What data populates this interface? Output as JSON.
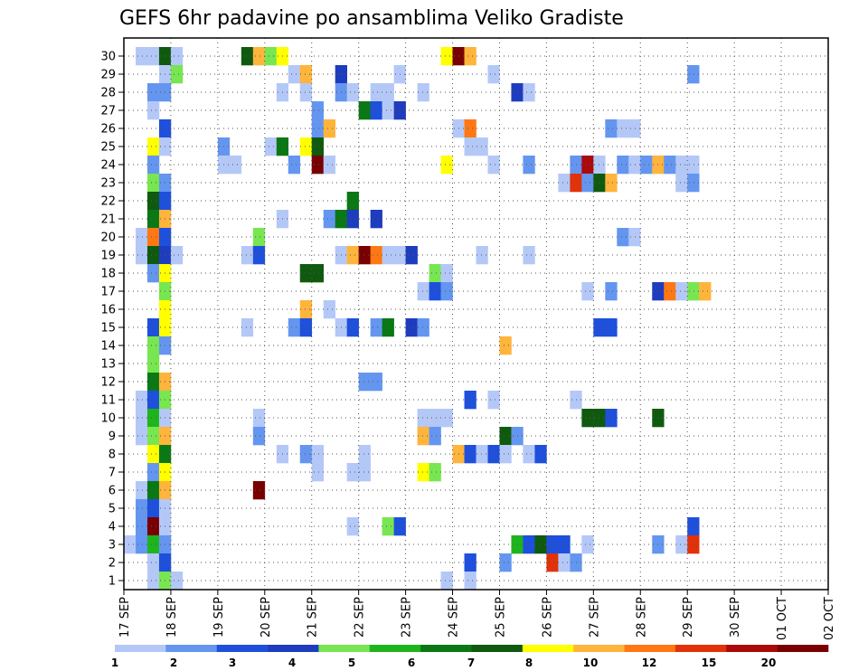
{
  "chart_data": {
    "type": "heatmap",
    "title": "GEFS 6hr padavine po ansamblima Veliko Gradiste",
    "ylim": [
      1,
      30
    ],
    "y_ticks": [
      "1",
      "2",
      "3",
      "4",
      "5",
      "6",
      "7",
      "8",
      "9",
      "10",
      "11",
      "12",
      "13",
      "14",
      "15",
      "16",
      "17",
      "18",
      "19",
      "20",
      "21",
      "22",
      "23",
      "24",
      "25",
      "26",
      "27",
      "28",
      "29",
      "30"
    ],
    "x_ticks": [
      "17 SEP",
      "18 SEP",
      "19 SEP",
      "20 SEP",
      "21 SEP",
      "22 SEP",
      "23 SEP",
      "24 SEP",
      "25 SEP",
      "26 SEP",
      "27 SEP",
      "28 SEP",
      "29 SEP",
      "30 SEP",
      "01 OCT",
      "02 OCT"
    ],
    "time_step": "6hr",
    "grid": true,
    "colorbar": {
      "position": "bottom",
      "levels": [
        "1",
        "2",
        "3",
        "4",
        "5",
        "6",
        "7",
        "8",
        "10",
        "12",
        "15",
        "20"
      ],
      "colors": [
        "#b4c8f8",
        "#6496f0",
        "#1e50dc",
        "#1e3cbe",
        "#78e650",
        "#1eb41e",
        "#0a7814",
        "#0f5a0f",
        "#ffff00",
        "#ffb43c",
        "#ff7814",
        "#e1320a",
        "#aa0a0a",
        "#780000"
      ]
    },
    "cells_note": "each cell: [column index (6-hour step starting 17 SEP 00), member, color class index]",
    "cells": [
      [
        1,
        30,
        0
      ],
      [
        2,
        30,
        0
      ],
      [
        3,
        30,
        7
      ],
      [
        4,
        30,
        0
      ],
      [
        10,
        30,
        7
      ],
      [
        11,
        30,
        9
      ],
      [
        12,
        30,
        4
      ],
      [
        13,
        30,
        8
      ],
      [
        27,
        30,
        8
      ],
      [
        28,
        30,
        13
      ],
      [
        29,
        30,
        9
      ],
      [
        3,
        29,
        0
      ],
      [
        4,
        29,
        4
      ],
      [
        14,
        29,
        0
      ],
      [
        15,
        29,
        9
      ],
      [
        18,
        29,
        3
      ],
      [
        23,
        29,
        0
      ],
      [
        31,
        29,
        0
      ],
      [
        48,
        29,
        1
      ],
      [
        2,
        28,
        1
      ],
      [
        3,
        28,
        1
      ],
      [
        13,
        28,
        0
      ],
      [
        15,
        28,
        0
      ],
      [
        18,
        28,
        1
      ],
      [
        19,
        28,
        0
      ],
      [
        21,
        28,
        0
      ],
      [
        22,
        28,
        0
      ],
      [
        25,
        28,
        0
      ],
      [
        33,
        28,
        3
      ],
      [
        34,
        28,
        0
      ],
      [
        2,
        27,
        0
      ],
      [
        16,
        27,
        1
      ],
      [
        20,
        27,
        6
      ],
      [
        21,
        27,
        2
      ],
      [
        22,
        27,
        0
      ],
      [
        23,
        27,
        3
      ],
      [
        3,
        26,
        2
      ],
      [
        16,
        26,
        1
      ],
      [
        17,
        26,
        9
      ],
      [
        28,
        26,
        0
      ],
      [
        29,
        26,
        10
      ],
      [
        41,
        26,
        1
      ],
      [
        42,
        26,
        0
      ],
      [
        43,
        26,
        0
      ],
      [
        2,
        25,
        8
      ],
      [
        3,
        25,
        0
      ],
      [
        8,
        25,
        1
      ],
      [
        12,
        25,
        0
      ],
      [
        13,
        25,
        6
      ],
      [
        15,
        25,
        8
      ],
      [
        16,
        25,
        7
      ],
      [
        29,
        25,
        0
      ],
      [
        30,
        25,
        0
      ],
      [
        2,
        24,
        1
      ],
      [
        8,
        24,
        0
      ],
      [
        9,
        24,
        0
      ],
      [
        14,
        24,
        1
      ],
      [
        16,
        24,
        13
      ],
      [
        17,
        24,
        0
      ],
      [
        27,
        24,
        8
      ],
      [
        31,
        24,
        0
      ],
      [
        34,
        24,
        1
      ],
      [
        38,
        24,
        1
      ],
      [
        39,
        24,
        12
      ],
      [
        40,
        24,
        0
      ],
      [
        42,
        24,
        1
      ],
      [
        43,
        24,
        0
      ],
      [
        44,
        24,
        1
      ],
      [
        45,
        24,
        9
      ],
      [
        46,
        24,
        1
      ],
      [
        47,
        24,
        0
      ],
      [
        48,
        24,
        0
      ],
      [
        2,
        23,
        4
      ],
      [
        3,
        23,
        1
      ],
      [
        37,
        23,
        0
      ],
      [
        38,
        23,
        11
      ],
      [
        39,
        23,
        1
      ],
      [
        40,
        23,
        7
      ],
      [
        41,
        23,
        9
      ],
      [
        47,
        23,
        0
      ],
      [
        48,
        23,
        1
      ],
      [
        2,
        22,
        7
      ],
      [
        3,
        22,
        2
      ],
      [
        19,
        22,
        6
      ],
      [
        2,
        21,
        6
      ],
      [
        3,
        21,
        9
      ],
      [
        13,
        21,
        0
      ],
      [
        17,
        21,
        1
      ],
      [
        18,
        21,
        6
      ],
      [
        19,
        21,
        3
      ],
      [
        21,
        21,
        3
      ],
      [
        1,
        20,
        0
      ],
      [
        2,
        20,
        10
      ],
      [
        3,
        20,
        2
      ],
      [
        11,
        20,
        4
      ],
      [
        42,
        20,
        1
      ],
      [
        43,
        20,
        0
      ],
      [
        1,
        19,
        0
      ],
      [
        2,
        19,
        7
      ],
      [
        3,
        19,
        3
      ],
      [
        4,
        19,
        0
      ],
      [
        10,
        19,
        0
      ],
      [
        11,
        19,
        2
      ],
      [
        18,
        19,
        0
      ],
      [
        19,
        19,
        9
      ],
      [
        20,
        19,
        13
      ],
      [
        21,
        19,
        10
      ],
      [
        22,
        19,
        0
      ],
      [
        23,
        19,
        0
      ],
      [
        24,
        19,
        3
      ],
      [
        30,
        19,
        0
      ],
      [
        34,
        19,
        0
      ],
      [
        2,
        18,
        1
      ],
      [
        3,
        18,
        8
      ],
      [
        15,
        18,
        7
      ],
      [
        16,
        18,
        7
      ],
      [
        26,
        18,
        4
      ],
      [
        27,
        18,
        0
      ],
      [
        3,
        17,
        4
      ],
      [
        25,
        17,
        0
      ],
      [
        26,
        17,
        2
      ],
      [
        27,
        17,
        1
      ],
      [
        39,
        17,
        0
      ],
      [
        41,
        17,
        1
      ],
      [
        45,
        17,
        3
      ],
      [
        46,
        17,
        10
      ],
      [
        47,
        17,
        0
      ],
      [
        48,
        17,
        4
      ],
      [
        49,
        17,
        9
      ],
      [
        3,
        16,
        8
      ],
      [
        15,
        16,
        9
      ],
      [
        17,
        16,
        0
      ],
      [
        2,
        15,
        2
      ],
      [
        3,
        15,
        8
      ],
      [
        10,
        15,
        0
      ],
      [
        14,
        15,
        1
      ],
      [
        15,
        15,
        2
      ],
      [
        18,
        15,
        0
      ],
      [
        19,
        15,
        2
      ],
      [
        21,
        15,
        1
      ],
      [
        22,
        15,
        6
      ],
      [
        24,
        15,
        3
      ],
      [
        25,
        15,
        1
      ],
      [
        40,
        15,
        2
      ],
      [
        41,
        15,
        2
      ],
      [
        2,
        14,
        4
      ],
      [
        3,
        14,
        1
      ],
      [
        32,
        14,
        9
      ],
      [
        2,
        13,
        4
      ],
      [
        2,
        12,
        6
      ],
      [
        3,
        12,
        9
      ],
      [
        20,
        12,
        1
      ],
      [
        21,
        12,
        1
      ],
      [
        1,
        11,
        0
      ],
      [
        2,
        11,
        2
      ],
      [
        3,
        11,
        4
      ],
      [
        29,
        11,
        2
      ],
      [
        31,
        11,
        0
      ],
      [
        38,
        11,
        0
      ],
      [
        1,
        10,
        0
      ],
      [
        2,
        10,
        5
      ],
      [
        3,
        10,
        0
      ],
      [
        11,
        10,
        0
      ],
      [
        25,
        10,
        0
      ],
      [
        26,
        10,
        0
      ],
      [
        27,
        10,
        0
      ],
      [
        39,
        10,
        7
      ],
      [
        40,
        10,
        7
      ],
      [
        41,
        10,
        2
      ],
      [
        45,
        10,
        7
      ],
      [
        1,
        9,
        0
      ],
      [
        2,
        9,
        4
      ],
      [
        3,
        9,
        9
      ],
      [
        11,
        9,
        1
      ],
      [
        25,
        9,
        9
      ],
      [
        26,
        9,
        1
      ],
      [
        32,
        9,
        7
      ],
      [
        33,
        9,
        1
      ],
      [
        2,
        8,
        8
      ],
      [
        3,
        8,
        6
      ],
      [
        13,
        8,
        0
      ],
      [
        15,
        8,
        1
      ],
      [
        16,
        8,
        0
      ],
      [
        20,
        8,
        0
      ],
      [
        28,
        8,
        9
      ],
      [
        29,
        8,
        2
      ],
      [
        30,
        8,
        0
      ],
      [
        31,
        8,
        2
      ],
      [
        32,
        8,
        0
      ],
      [
        34,
        8,
        0
      ],
      [
        35,
        8,
        2
      ],
      [
        2,
        7,
        1
      ],
      [
        3,
        7,
        8
      ],
      [
        16,
        7,
        0
      ],
      [
        19,
        7,
        0
      ],
      [
        20,
        7,
        0
      ],
      [
        25,
        7,
        8
      ],
      [
        26,
        7,
        4
      ],
      [
        1,
        6,
        0
      ],
      [
        2,
        6,
        6
      ],
      [
        3,
        6,
        9
      ],
      [
        11,
        6,
        13
      ],
      [
        1,
        5,
        1
      ],
      [
        2,
        5,
        2
      ],
      [
        3,
        5,
        0
      ],
      [
        1,
        4,
        1
      ],
      [
        2,
        4,
        13
      ],
      [
        3,
        4,
        0
      ],
      [
        19,
        4,
        0
      ],
      [
        22,
        4,
        4
      ],
      [
        23,
        4,
        2
      ],
      [
        48,
        4,
        2
      ],
      [
        0,
        3,
        0
      ],
      [
        1,
        3,
        1
      ],
      [
        2,
        3,
        5
      ],
      [
        3,
        3,
        1
      ],
      [
        33,
        3,
        5
      ],
      [
        34,
        3,
        2
      ],
      [
        35,
        3,
        7
      ],
      [
        36,
        3,
        2
      ],
      [
        37,
        3,
        2
      ],
      [
        39,
        3,
        0
      ],
      [
        45,
        3,
        1
      ],
      [
        47,
        3,
        0
      ],
      [
        48,
        3,
        11
      ],
      [
        2,
        2,
        0
      ],
      [
        3,
        2,
        2
      ],
      [
        29,
        2,
        2
      ],
      [
        32,
        2,
        1
      ],
      [
        36,
        2,
        11
      ],
      [
        37,
        2,
        0
      ],
      [
        38,
        2,
        1
      ],
      [
        2,
        1,
        0
      ],
      [
        3,
        1,
        4
      ],
      [
        4,
        1,
        0
      ],
      [
        27,
        1,
        0
      ],
      [
        29,
        1,
        0
      ]
    ]
  }
}
